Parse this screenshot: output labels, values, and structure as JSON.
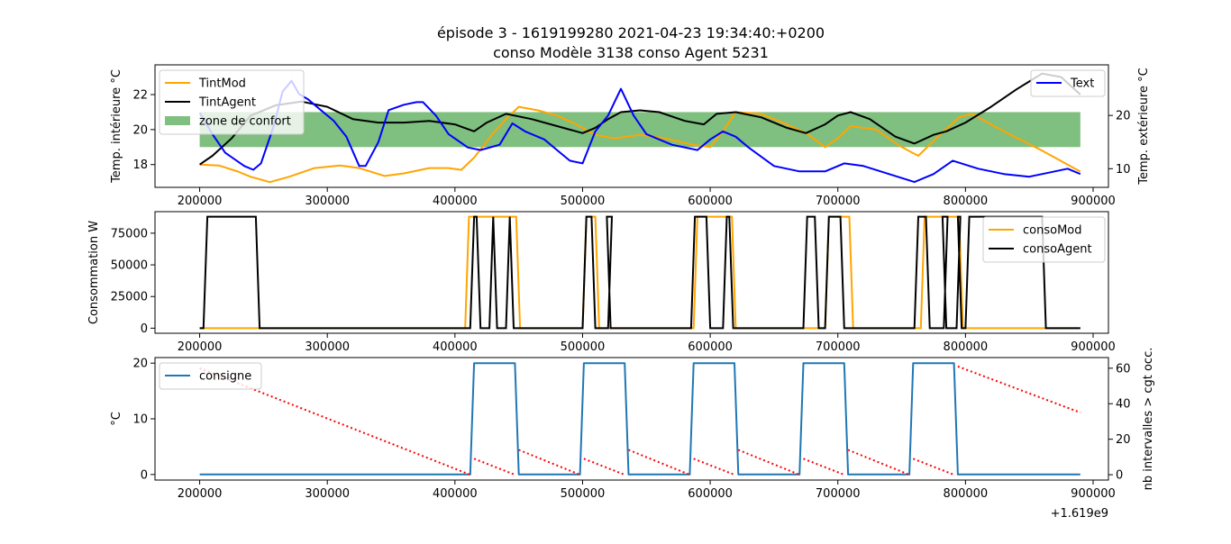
{
  "figure": {
    "title_line1": "épisode 3 - 1619199280 2021-04-23 19:34:40:+0200",
    "title_line2": "conso Modèle 3138 conso Agent 5231",
    "x_offset_label": "+1.619e9"
  },
  "colors": {
    "orange": "#ffa500",
    "black": "#000000",
    "blue": "#0000ff",
    "green": "#008000",
    "consigne": "#1f77b4",
    "red": "#ff0000"
  },
  "chart_data": [
    {
      "id": "panel1",
      "type": "line",
      "ylabel": "Temp. intérieure °C",
      "ylabel_right": "Temp. extérieure °C",
      "xlim": [
        165000,
        912000
      ],
      "ylim": [
        16.7,
        23.7
      ],
      "ylim_right": [
        6.5,
        29.5
      ],
      "xticks": [
        200000,
        300000,
        400000,
        500000,
        600000,
        700000,
        800000,
        900000
      ],
      "yticks": [
        18,
        20,
        22
      ],
      "yticks_right": [
        10,
        20
      ],
      "comfort_zone": {
        "x": [
          200000,
          890000
        ],
        "y": [
          19,
          21
        ],
        "label": "zone de confort",
        "alpha": 0.5
      },
      "legend_left": [
        "TintMod",
        "TintAgent",
        "zone de confort"
      ],
      "legend_right": [
        "Text"
      ],
      "series": [
        {
          "name": "TintMod",
          "color": "orange",
          "axis": "left",
          "x": [
            200000,
            215000,
            230000,
            240000,
            255000,
            270000,
            290000,
            310000,
            325000,
            345000,
            360000,
            380000,
            395000,
            405000,
            415000,
            430000,
            440000,
            450000,
            465000,
            480000,
            495000,
            510000,
            525000,
            545000,
            565000,
            585000,
            600000,
            610000,
            620000,
            640000,
            660000,
            675000,
            690000,
            700000,
            710000,
            730000,
            750000,
            763000,
            780000,
            795000,
            805000,
            830000,
            860000,
            890000
          ],
          "y": [
            18,
            17.95,
            17.6,
            17.3,
            17.0,
            17.3,
            17.8,
            17.95,
            17.8,
            17.35,
            17.5,
            17.8,
            17.8,
            17.7,
            18.4,
            19.8,
            20.6,
            21.3,
            21.1,
            20.8,
            20.3,
            19.7,
            19.5,
            19.7,
            19.5,
            19.15,
            19.0,
            19.9,
            21.0,
            20.9,
            20.3,
            19.8,
            19.0,
            19.5,
            20.2,
            20.0,
            19.0,
            18.5,
            19.7,
            20.7,
            20.9,
            19.9,
            18.8,
            17.6
          ]
        },
        {
          "name": "TintAgent",
          "color": "black",
          "axis": "left",
          "x": [
            200000,
            210000,
            225000,
            240000,
            260000,
            280000,
            300000,
            320000,
            340000,
            360000,
            380000,
            400000,
            415000,
            425000,
            440000,
            460000,
            480000,
            500000,
            510000,
            520000,
            530000,
            545000,
            560000,
            580000,
            595000,
            605000,
            620000,
            640000,
            660000,
            675000,
            690000,
            700000,
            710000,
            725000,
            745000,
            760000,
            775000,
            785000,
            800000,
            820000,
            840000,
            860000,
            875000,
            890000
          ],
          "y": [
            18,
            18.5,
            19.5,
            20.8,
            21.4,
            21.6,
            21.3,
            20.6,
            20.4,
            20.4,
            20.5,
            20.3,
            19.9,
            20.4,
            20.9,
            20.6,
            20.2,
            19.8,
            20.1,
            20.6,
            21.0,
            21.1,
            21.0,
            20.5,
            20.3,
            20.9,
            21.0,
            20.7,
            20.1,
            19.8,
            20.3,
            20.8,
            21.0,
            20.6,
            19.6,
            19.2,
            19.7,
            19.9,
            20.4,
            21.3,
            22.3,
            23.2,
            23.0,
            22.0
          ]
        },
        {
          "name": "Text",
          "color": "blue",
          "axis": "right",
          "x": [
            200000,
            210000,
            220000,
            235000,
            242000,
            248000,
            258000,
            265000,
            272000,
            278000,
            285000,
            295000,
            305000,
            315000,
            325000,
            330000,
            340000,
            348000,
            360000,
            370000,
            375000,
            385000,
            395000,
            410000,
            420000,
            435000,
            445000,
            455000,
            470000,
            480000,
            490000,
            500000,
            510000,
            520000,
            530000,
            540000,
            550000,
            570000,
            590000,
            600000,
            610000,
            620000,
            630000,
            650000,
            670000,
            690000,
            705000,
            720000,
            740000,
            760000,
            775000,
            790000,
            810000,
            830000,
            850000,
            870000,
            880000,
            890000
          ],
          "y": [
            20.5,
            16.5,
            13.0,
            10.5,
            9.8,
            11.0,
            18.0,
            24.5,
            26.5,
            24.0,
            23.0,
            21.0,
            19.0,
            16.0,
            10.5,
            10.5,
            15.0,
            21.0,
            22.0,
            22.5,
            22.5,
            20.0,
            16.5,
            14.0,
            13.5,
            14.5,
            18.5,
            17.0,
            15.5,
            13.5,
            11.5,
            11.0,
            17.0,
            20.0,
            25.0,
            20.0,
            16.5,
            14.5,
            13.5,
            15.5,
            17.0,
            16.0,
            14.0,
            10.5,
            9.5,
            9.5,
            11.0,
            10.5,
            9.0,
            7.5,
            9.0,
            11.5,
            10.0,
            9.0,
            8.5,
            9.5,
            10.0,
            9.0
          ]
        }
      ]
    },
    {
      "id": "panel2",
      "type": "line",
      "ylabel": "Consommation W",
      "xlim": [
        165000,
        912000
      ],
      "ylim": [
        -4000,
        92000
      ],
      "xticks": [
        200000,
        300000,
        400000,
        500000,
        600000,
        700000,
        800000,
        900000
      ],
      "yticks": [
        0,
        25000,
        50000,
        75000
      ],
      "legend": [
        "consoMod",
        "consoAgent"
      ],
      "series": [
        {
          "name": "consoMod",
          "color": "orange",
          "on_intervals": [
            [
              408000,
              451000
            ],
            [
              500000,
              513000
            ],
            [
              587000,
              620000
            ],
            [
              690000,
              712000
            ],
            [
              765000,
              798000
            ]
          ],
          "level": 88000
        },
        {
          "name": "consoAgent",
          "color": "black",
          "on_intervals": [
            [
              203000,
              247000
            ],
            [
              412000,
              420000
            ],
            [
              427000,
              433000
            ],
            [
              440000,
              446000
            ],
            [
              500000,
              510000
            ],
            [
              520000,
              522000
            ],
            [
              585000,
              600000
            ],
            [
              610000,
              618000
            ],
            [
              673000,
              685000
            ],
            [
              690000,
              705000
            ],
            [
              760000,
              772000
            ],
            [
              783000,
              785000
            ],
            [
              793000,
              797000
            ],
            [
              800000,
              863000
            ]
          ],
          "level": 88000
        }
      ]
    },
    {
      "id": "panel3",
      "type": "line",
      "ylabel": "°C",
      "ylabel_right": "nb intervalles > cgt occ.",
      "xlim": [
        165000,
        912000
      ],
      "ylim": [
        -1,
        21
      ],
      "ylim_right": [
        -3,
        66
      ],
      "xticks": [
        200000,
        300000,
        400000,
        500000,
        600000,
        700000,
        800000,
        900000
      ],
      "xtick_labels": [
        "200000",
        "300000",
        "400000",
        "500000",
        "600000",
        "700000",
        "800000",
        "900000"
      ],
      "yticks": [
        0,
        10,
        20
      ],
      "yticks_right": [
        0,
        20,
        40,
        60
      ],
      "legend": [
        "consigne"
      ],
      "series": [
        {
          "name": "consigne",
          "color": "consigne",
          "axis": "left",
          "x": [
            200000,
            412000,
            415000,
            447000,
            450000,
            498000,
            501000,
            533000,
            536000,
            584000,
            587000,
            619000,
            622000,
            670000,
            673000,
            705000,
            708000,
            756000,
            759000,
            791000,
            794000,
            890000
          ],
          "y": [
            0,
            0,
            20,
            20,
            0,
            0,
            20,
            20,
            0,
            0,
            20,
            20,
            0,
            0,
            20,
            20,
            0,
            0,
            20,
            20,
            0,
            0
          ]
        },
        {
          "color": "red",
          "axis": "right",
          "style": "dotted",
          "segments": [
            [
              [
                200000,
                60
              ],
              [
                412000,
                0
              ]
            ],
            [
              [
                415000,
                9
              ],
              [
                447000,
                0
              ]
            ],
            [
              [
                450000,
                14
              ],
              [
                498000,
                0
              ]
            ],
            [
              [
                501000,
                9
              ],
              [
                533000,
                0
              ]
            ],
            [
              [
                536000,
                14
              ],
              [
                584000,
                0
              ]
            ],
            [
              [
                587000,
                9
              ],
              [
                619000,
                0
              ]
            ],
            [
              [
                622000,
                14
              ],
              [
                670000,
                0
              ]
            ],
            [
              [
                673000,
                9
              ],
              [
                705000,
                0
              ]
            ],
            [
              [
                708000,
                14
              ],
              [
                756000,
                0
              ]
            ],
            [
              [
                759000,
                9
              ],
              [
                791000,
                0
              ]
            ],
            [
              [
                794000,
                61
              ],
              [
                890000,
                35
              ]
            ]
          ]
        }
      ]
    }
  ]
}
